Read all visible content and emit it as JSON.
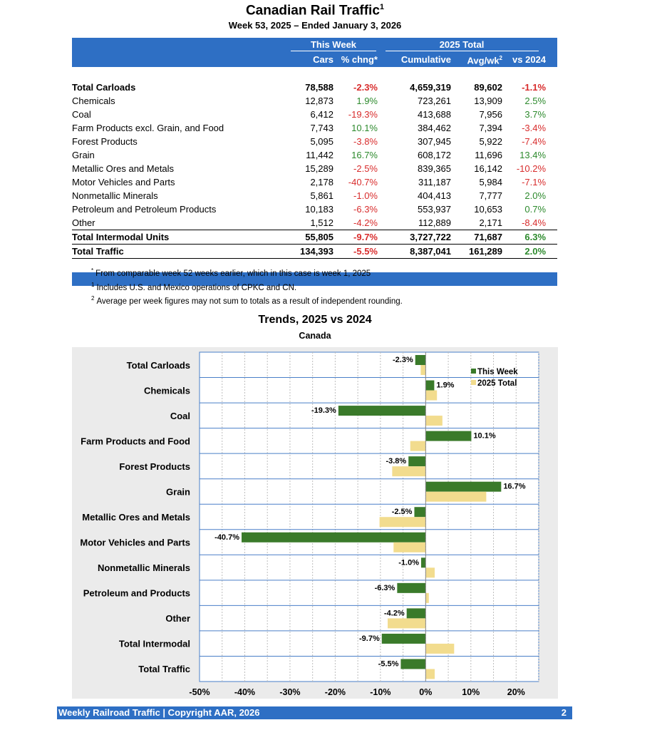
{
  "header": {
    "title": "Canadian Rail Traffic",
    "title_sup": "1",
    "subtitle": "Week 53, 2025 – Ended January 3, 2026"
  },
  "table": {
    "group_this_week": "This Week",
    "group_2025_total": "2025 Total",
    "col_cars": "Cars",
    "col_pct_chng": "% chng*",
    "col_cumulative": "Cumulative",
    "col_avgwk": "Avg/wk",
    "col_avgwk_sup": "2",
    "col_vs2024": "vs 2024",
    "rows": [
      {
        "label": "Total Carloads",
        "cars": "78,588",
        "pct": "-2.3%",
        "cum": "4,659,319",
        "avg": "89,602",
        "vs": "-1.1%"
      },
      {
        "label": "Chemicals",
        "cars": "12,873",
        "pct": "1.9%",
        "cum": "723,261",
        "avg": "13,909",
        "vs": "2.5%"
      },
      {
        "label": "Coal",
        "cars": "6,412",
        "pct": "-19.3%",
        "cum": "413,688",
        "avg": "7,956",
        "vs": "3.7%"
      },
      {
        "label": "Farm Products excl. Grain, and Food",
        "cars": "7,743",
        "pct": "10.1%",
        "cum": "384,462",
        "avg": "7,394",
        "vs": "-3.4%"
      },
      {
        "label": "Forest Products",
        "cars": "5,095",
        "pct": "-3.8%",
        "cum": "307,945",
        "avg": "5,922",
        "vs": "-7.4%"
      },
      {
        "label": "Grain",
        "cars": "11,442",
        "pct": "16.7%",
        "cum": "608,172",
        "avg": "11,696",
        "vs": "13.4%"
      },
      {
        "label": "Metallic Ores and Metals",
        "cars": "15,289",
        "pct": "-2.5%",
        "cum": "839,365",
        "avg": "16,142",
        "vs": "-10.2%"
      },
      {
        "label": "Motor Vehicles and Parts",
        "cars": "2,178",
        "pct": "-40.7%",
        "cum": "311,187",
        "avg": "5,984",
        "vs": "-7.1%"
      },
      {
        "label": "Nonmetallic Minerals",
        "cars": "5,861",
        "pct": "-1.0%",
        "cum": "404,413",
        "avg": "7,777",
        "vs": "2.0%"
      },
      {
        "label": "Petroleum and Petroleum Products",
        "cars": "10,183",
        "pct": "-6.3%",
        "cum": "553,937",
        "avg": "10,653",
        "vs": "0.7%"
      },
      {
        "label": "Other",
        "cars": "1,512",
        "pct": "-4.2%",
        "cum": "112,889",
        "avg": "2,171",
        "vs": "-8.4%"
      },
      {
        "label": "Total Intermodal Units",
        "cars": "55,805",
        "pct": "-9.7%",
        "cum": "3,727,722",
        "avg": "71,687",
        "vs": "6.3%"
      },
      {
        "label": "Total Traffic",
        "cars": "134,393",
        "pct": "-5.5%",
        "cum": "8,387,041",
        "avg": "161,289",
        "vs": "2.0%"
      }
    ]
  },
  "notes": [
    {
      "mark": "*",
      "text": "From comparable week 52 weeks earlier, which in this case is week 1, 2025"
    },
    {
      "mark": "1",
      "text": "Includes U.S. and Mexico operations of CPKC and CN."
    },
    {
      "mark": "2",
      "text": "Average per week figures may not sum to totals as a result of independent rounding."
    }
  ],
  "colors": {
    "header_blue": "#2e6fc4",
    "this_week_green": "#3a7a2a",
    "total_tan": "#f2dc8e",
    "negative_red": "#d82c2c",
    "positive_green": "#2d8a2d",
    "chart_panel": "#ebebeb"
  },
  "chart_data": {
    "type": "bar",
    "orientation": "horizontal",
    "title": "Trends, 2025 vs 2024",
    "subtitle": "Canada",
    "categories": [
      "Total Carloads",
      "Chemicals",
      "Coal",
      "Farm Products and Food",
      "Forest Products",
      "Grain",
      "Metallic Ores and Metals",
      "Motor Vehicles and Parts",
      "Nonmetallic Minerals",
      "Petroleum and Products",
      "Other",
      "Total Intermodal",
      "Total Traffic"
    ],
    "series": [
      {
        "name": "This Week",
        "values": [
          -2.3,
          1.9,
          -19.3,
          10.1,
          -3.8,
          16.7,
          -2.5,
          -40.7,
          -1.0,
          -6.3,
          -4.2,
          -9.7,
          -5.5
        ]
      },
      {
        "name": "2025 Total",
        "values": [
          -1.1,
          2.5,
          3.7,
          -3.4,
          -7.4,
          13.4,
          -10.2,
          -7.1,
          2.0,
          0.7,
          -8.4,
          6.3,
          2.0
        ]
      }
    ],
    "data_labels": [
      "-2.3%",
      "1.9%",
      "-19.3%",
      "10.1%",
      "-3.8%",
      "16.7%",
      "-2.5%",
      "-40.7%",
      "-1.0%",
      "-6.3%",
      "-4.2%",
      "-9.7%",
      "-5.5%"
    ],
    "x_ticks": [
      "-50%",
      "-40%",
      "-30%",
      "-20%",
      "-10%",
      "0%",
      "10%",
      "20%"
    ],
    "xlim": [
      -50,
      25
    ],
    "grid": true,
    "legend_position": "top-right"
  },
  "footer": {
    "text": "Weekly Railroad Traffic | Copyright AAR, 2026",
    "page": "2"
  }
}
